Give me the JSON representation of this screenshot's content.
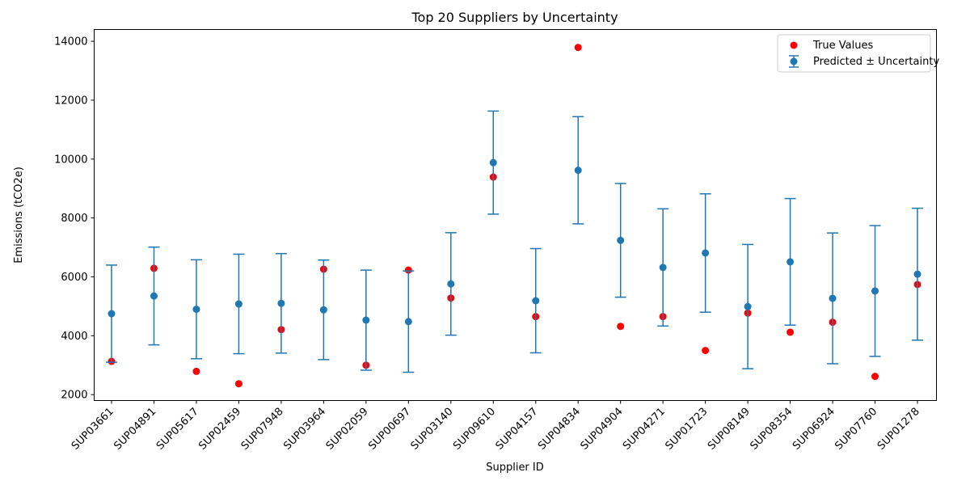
{
  "chart_data": {
    "type": "scatter",
    "title": "Top 20 Suppliers by Uncertainty",
    "xlabel": "Supplier ID",
    "ylabel": "Emissions (tCO2e)",
    "ylim": [
      1800,
      14400
    ],
    "yticks": [
      2000,
      4000,
      6000,
      8000,
      10000,
      12000,
      14000
    ],
    "categories": [
      "SUP03661",
      "SUP04891",
      "SUP05617",
      "SUP02459",
      "SUP07948",
      "SUP03964",
      "SUP02059",
      "SUP00697",
      "SUP03140",
      "SUP09610",
      "SUP04157",
      "SUP04834",
      "SUP04904",
      "SUP04271",
      "SUP01723",
      "SUP08149",
      "SUP08354",
      "SUP06924",
      "SUP07760",
      "SUP01278"
    ],
    "series": [
      {
        "name": "True Values",
        "color": "#ff0000",
        "values": [
          3130,
          6290,
          2790,
          2370,
          4210,
          6260,
          3000,
          6230,
          5280,
          9390,
          4650,
          13790,
          4320,
          4650,
          3500,
          4770,
          4120,
          4460,
          2620,
          5740
        ]
      },
      {
        "name": "Predicted ± Uncertainty",
        "color": "#1f77b4",
        "values": [
          4750,
          5350,
          4900,
          5080,
          5100,
          4880,
          4530,
          4480,
          5760,
          9880,
          5190,
          9620,
          7240,
          6320,
          6810,
          4990,
          6510,
          5270,
          5520,
          6090
        ],
        "uncertainty": [
          1650,
          1660,
          1680,
          1690,
          1690,
          1690,
          1700,
          1720,
          1740,
          1750,
          1770,
          1820,
          1930,
          1990,
          2010,
          2110,
          2150,
          2220,
          2220,
          2240
        ]
      }
    ],
    "legend_position": "upper right",
    "grid": false
  }
}
